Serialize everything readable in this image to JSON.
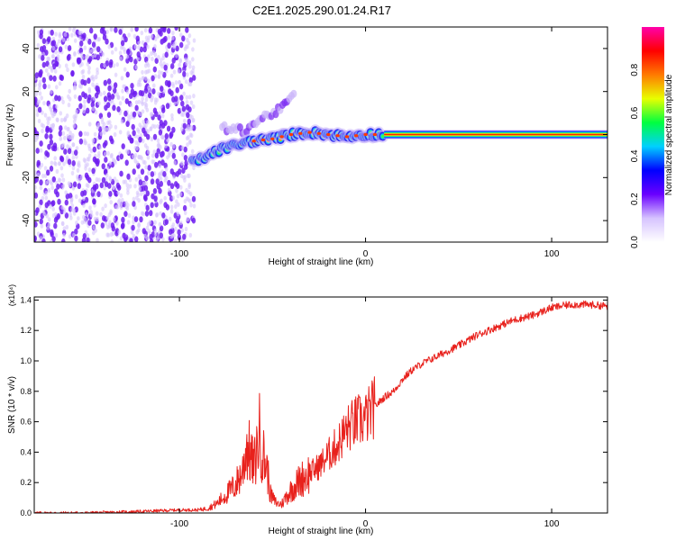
{
  "title": "C2E1.2025.290.01.24.R17",
  "colors": {
    "snr_line": "#e8211c",
    "colorbar": [
      "#ffffff",
      "#d6c3ff",
      "#6a00ff",
      "#0000ff",
      "#00d0ff",
      "#00ff40",
      "#e8ff00",
      "#ff7a00",
      "#ff0000",
      "#ff00aa"
    ]
  },
  "chart_data": [
    {
      "type": "heatmap",
      "title": "C2E1.2025.290.01.24.R17",
      "xlabel": "Height of straight line (km)",
      "ylabel": "Frequency (Hz)",
      "xlim": [
        -178,
        130
      ],
      "ylim": [
        -50,
        50
      ],
      "xticks": [
        -100,
        0,
        100
      ],
      "yticks": [
        -40,
        -20,
        0,
        20,
        40
      ],
      "xtick_labels": [
        "-100",
        "0",
        "100"
      ],
      "ytick_labels": [
        "-40",
        "-20",
        "0",
        "20",
        "40"
      ],
      "colorbar": {
        "label": "Normalized spectral amplitude",
        "range": [
          0,
          1
        ],
        "ticks": [
          0.0,
          0.2,
          0.4,
          0.6,
          0.8
        ],
        "tick_labels": [
          "0.0",
          "0.2",
          "0.4",
          "0.6",
          "0.8"
        ]
      },
      "regions": [
        {
          "name": "noise",
          "x_range": [
            -178,
            -92
          ],
          "freq_range": [
            -50,
            50
          ],
          "amplitude": 0.15
        },
        {
          "name": "main-track",
          "points": [
            [
              -93,
              -13
            ],
            [
              -85,
              -10
            ],
            [
              -78,
              -7
            ],
            [
              -70,
              -5
            ],
            [
              -60,
              -3
            ],
            [
              -50,
              -2
            ],
            [
              -40,
              0
            ],
            [
              -30,
              1
            ],
            [
              -20,
              0
            ],
            [
              -10,
              -1
            ],
            [
              0,
              0
            ],
            [
              10,
              0
            ],
            [
              130,
              0
            ]
          ],
          "amplitude": 0.9
        },
        {
          "name": "side-track",
          "points": [
            [
              -77,
              3
            ],
            [
              -65,
              2
            ],
            [
              -55,
              8
            ],
            [
              -45,
              12
            ],
            [
              -38,
              20
            ]
          ],
          "amplitude": 0.3
        }
      ]
    },
    {
      "type": "line",
      "xlabel": "Height of straight line (km)",
      "ylabel": "SNR (10 * v/v)",
      "y_multiplier": "(x10⁴)",
      "xlim": [
        -178,
        130
      ],
      "ylim": [
        0,
        1.42
      ],
      "xticks": [
        -100,
        0,
        100
      ],
      "yticks": [
        0.0,
        0.2,
        0.4,
        0.6,
        0.8,
        1.0,
        1.2,
        1.4
      ],
      "xtick_labels": [
        "-100",
        "0",
        "100"
      ],
      "ytick_labels": [
        "0.0",
        "0.2",
        "0.4",
        "0.6",
        "0.8",
        "1.0",
        "1.2",
        "1.4"
      ],
      "series": [
        {
          "name": "SNR",
          "x": [
            -178,
            -150,
            -120,
            -100,
            -90,
            -85,
            -80,
            -75,
            -70,
            -66,
            -64,
            -62,
            -60,
            -57,
            -55,
            -53,
            -51,
            -49,
            -47,
            -45,
            -42,
            -38,
            -33,
            -28,
            -24,
            -20,
            -15,
            -10,
            -5,
            0,
            5,
            10,
            15,
            20,
            25,
            30,
            40,
            50,
            60,
            70,
            80,
            90,
            100,
            110,
            120,
            130
          ],
          "values": [
            0.0,
            0.0,
            0.01,
            0.02,
            0.02,
            0.03,
            0.06,
            0.12,
            0.18,
            0.28,
            0.45,
            0.38,
            0.3,
            0.52,
            0.38,
            0.3,
            0.12,
            0.08,
            0.06,
            0.06,
            0.12,
            0.18,
            0.24,
            0.28,
            0.32,
            0.38,
            0.45,
            0.55,
            0.6,
            0.62,
            0.7,
            0.76,
            0.8,
            0.88,
            0.94,
            0.98,
            1.04,
            1.1,
            1.17,
            1.22,
            1.27,
            1.3,
            1.35,
            1.37,
            1.37,
            1.36
          ]
        }
      ]
    }
  ]
}
